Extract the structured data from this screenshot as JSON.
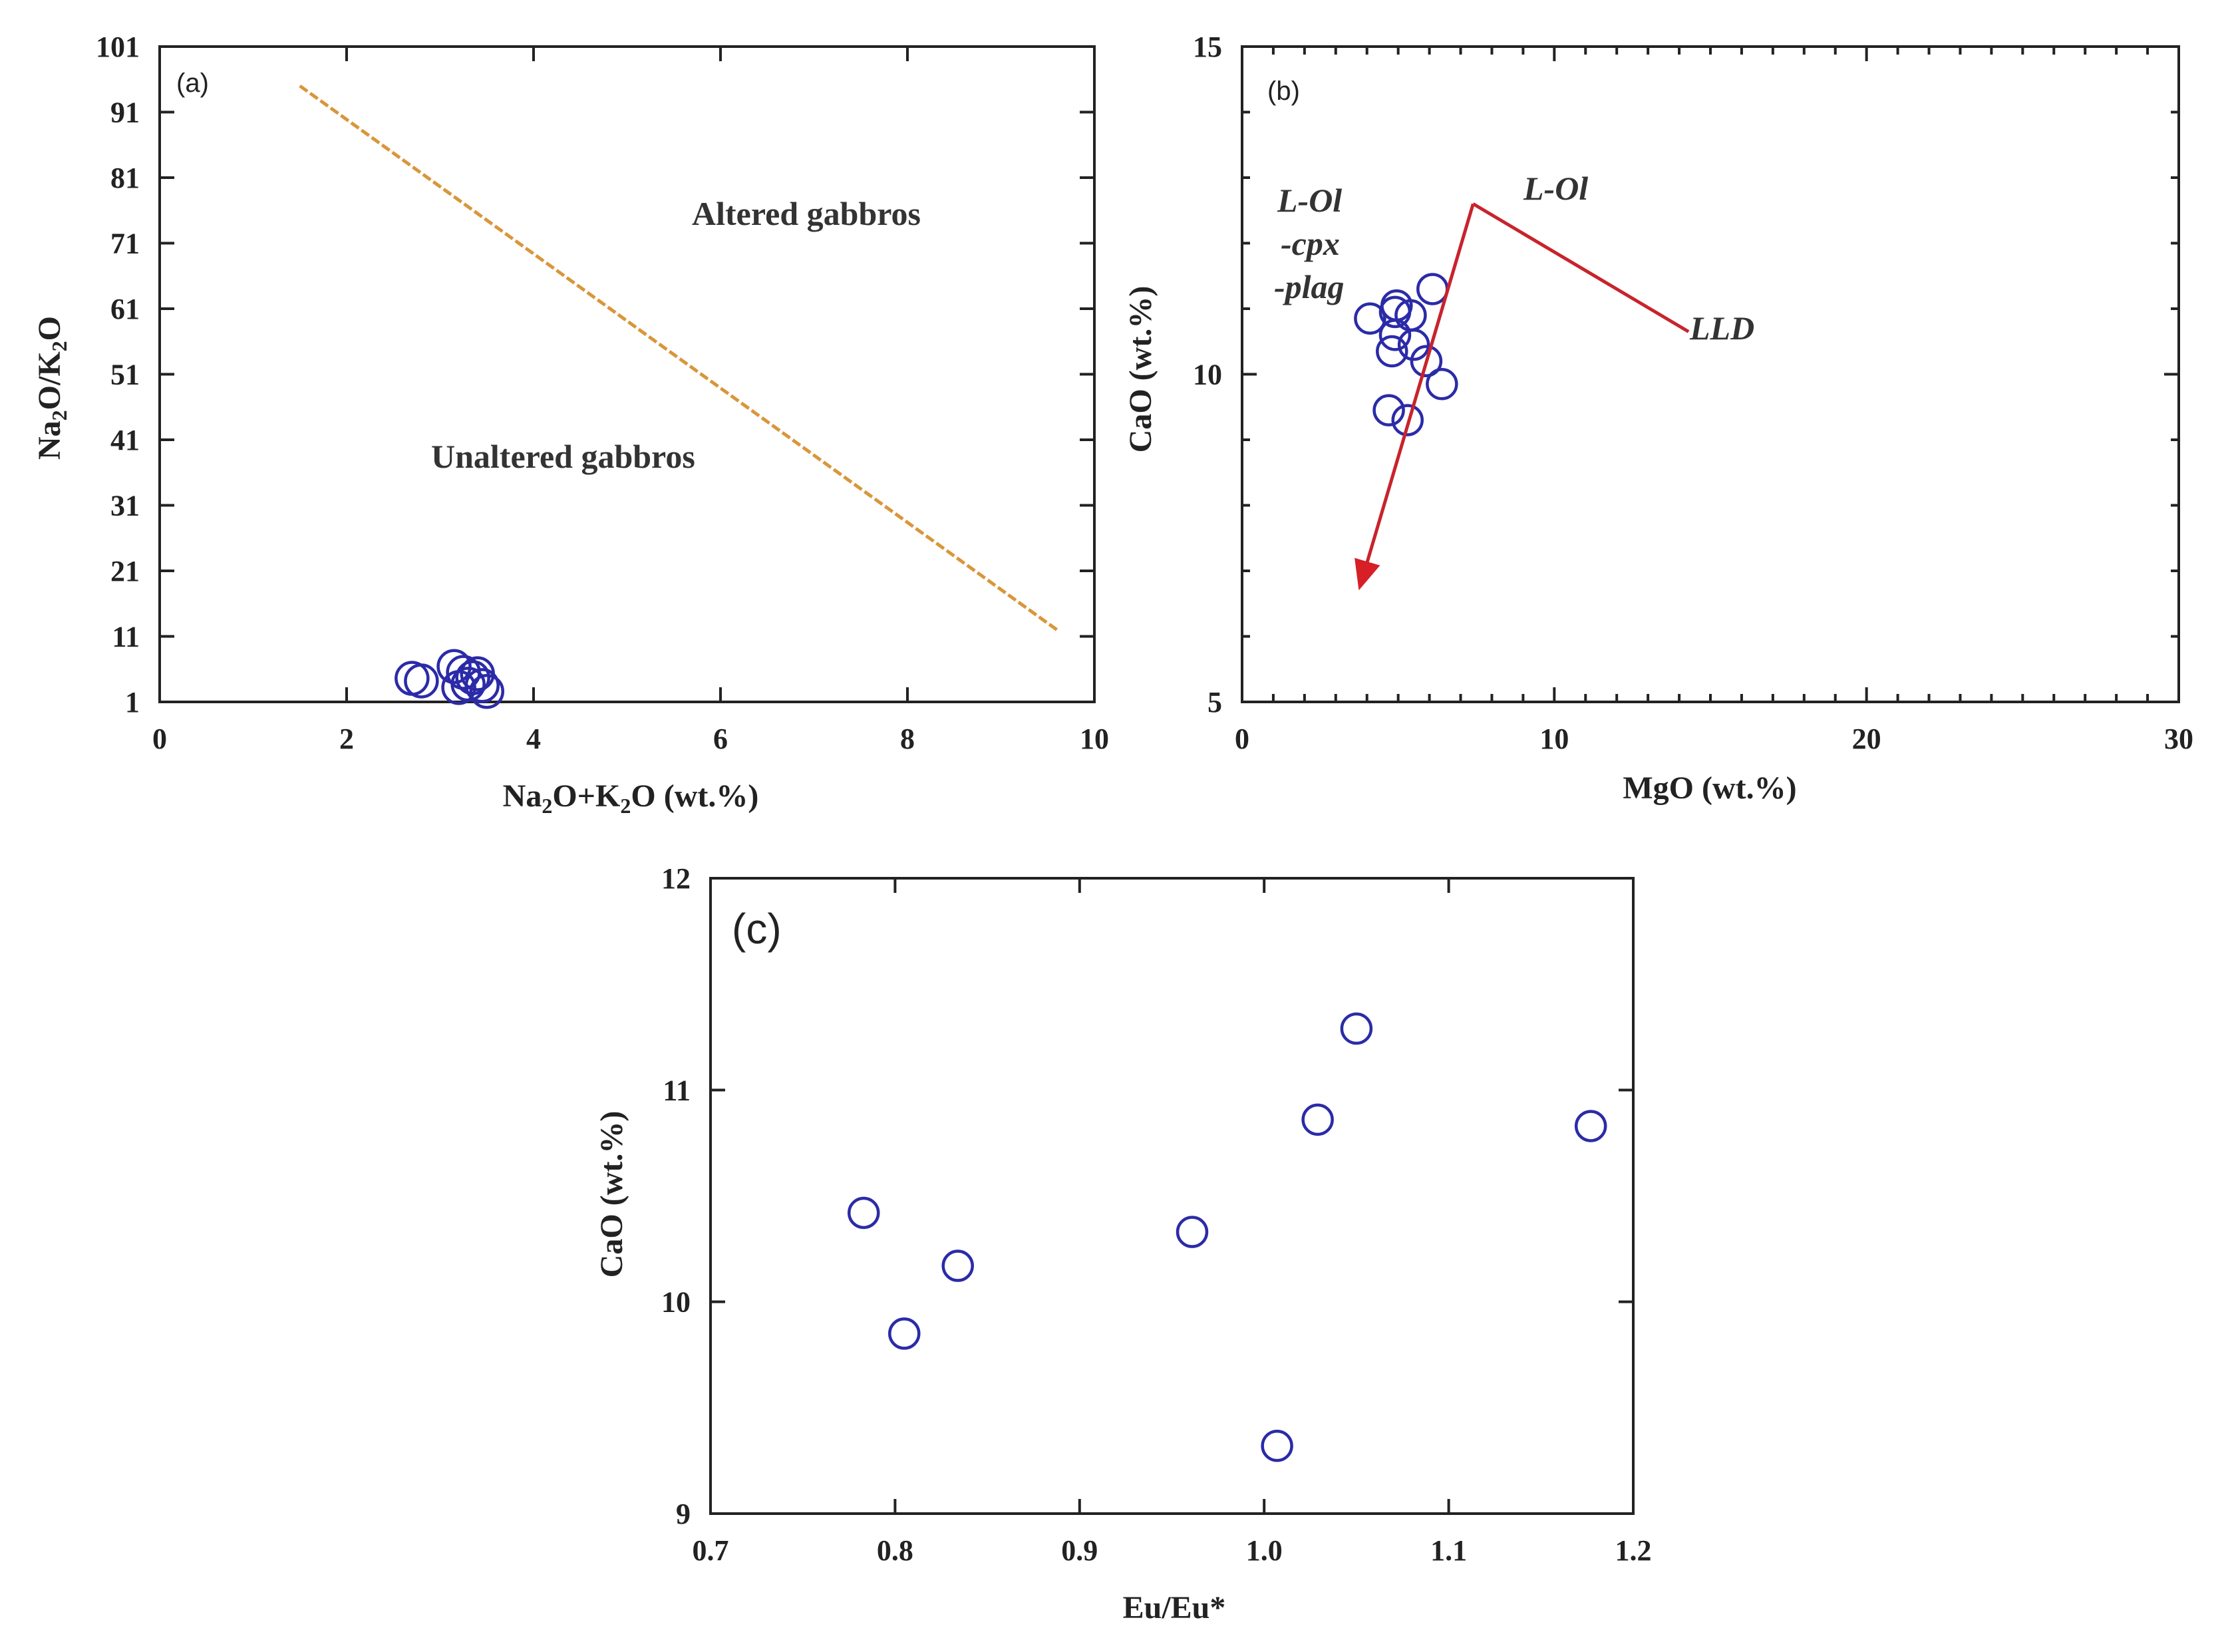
{
  "chart_data": [
    {
      "panel": "(a)",
      "type": "scatter",
      "xlabel": "Na2O+K2O (wt.%)",
      "ylabel": "Na2O/K2O",
      "xlim": [
        0,
        10
      ],
      "ylim": [
        1,
        101
      ],
      "xticks": [
        0,
        2,
        4,
        6,
        8,
        10
      ],
      "yticks": [
        1,
        11,
        21,
        31,
        41,
        51,
        61,
        71,
        81,
        91,
        101
      ],
      "points": [
        {
          "x": 2.7,
          "y": 4.6
        },
        {
          "x": 2.8,
          "y": 4.2
        },
        {
          "x": 3.15,
          "y": 6.4
        },
        {
          "x": 3.25,
          "y": 5.5
        },
        {
          "x": 3.35,
          "y": 4.7
        },
        {
          "x": 3.4,
          "y": 5.3
        },
        {
          "x": 3.3,
          "y": 3.7
        },
        {
          "x": 3.2,
          "y": 3.2
        },
        {
          "x": 3.45,
          "y": 3.5
        },
        {
          "x": 3.5,
          "y": 2.6
        }
      ],
      "divider": {
        "label": "dashed boundary",
        "x": [
          1.5,
          9.6
        ],
        "y": [
          95,
          12
        ],
        "color": "#d9963a"
      },
      "annotations": [
        "Altered gabbros",
        "Unaltered gabbros"
      ]
    },
    {
      "panel": "(b)",
      "type": "scatter",
      "xlabel": "MgO (wt.%)",
      "ylabel": "CaO (wt.%)",
      "xlim": [
        0,
        30
      ],
      "ylim": [
        5,
        15
      ],
      "xticks": [
        0,
        10,
        20,
        30
      ],
      "yticks": [
        5,
        10,
        15
      ],
      "points": [
        {
          "x": 4.1,
          "y": 10.85
        },
        {
          "x": 4.9,
          "y": 10.95
        },
        {
          "x": 4.95,
          "y": 11.05
        },
        {
          "x": 5.4,
          "y": 10.9
        },
        {
          "x": 6.1,
          "y": 11.3
        },
        {
          "x": 4.9,
          "y": 10.6
        },
        {
          "x": 4.8,
          "y": 10.35
        },
        {
          "x": 5.5,
          "y": 10.45
        },
        {
          "x": 5.9,
          "y": 10.2
        },
        {
          "x": 6.4,
          "y": 9.85
        },
        {
          "x": 4.7,
          "y": 9.45
        },
        {
          "x": 5.3,
          "y": 9.3
        }
      ],
      "vectors": [
        {
          "label": "LLD",
          "x": [
            7.4,
            14.3
          ],
          "y": [
            12.6,
            10.65
          ],
          "arrow": false
        },
        {
          "label": "L-Ol-cpx-plag",
          "x": [
            7.4,
            3.8
          ],
          "y": [
            12.6,
            6.8
          ],
          "arrow": true
        }
      ],
      "vector_color": "#c8232c",
      "annotations": [
        "L-Ol",
        "L-Ol",
        "-cpx",
        "-plag",
        "LLD"
      ]
    },
    {
      "panel": "(c)",
      "type": "scatter",
      "xlabel": "Eu/Eu*",
      "ylabel": "CaO (wt.%)",
      "xlim": [
        0.7,
        1.2
      ],
      "ylim": [
        9,
        12
      ],
      "xticks": [
        "0.7",
        "0.8",
        "0.9",
        "1.0",
        "1.1",
        "1.2"
      ],
      "yticks": [
        9,
        10,
        11,
        12
      ],
      "points": [
        {
          "x": 0.783,
          "y": 10.42
        },
        {
          "x": 0.805,
          "y": 9.85
        },
        {
          "x": 0.834,
          "y": 10.17
        },
        {
          "x": 0.961,
          "y": 10.33
        },
        {
          "x": 1.007,
          "y": 9.32
        },
        {
          "x": 1.029,
          "y": 10.86
        },
        {
          "x": 1.05,
          "y": 11.29
        },
        {
          "x": 1.177,
          "y": 10.83
        }
      ]
    }
  ],
  "marker_color": "#2b2ba8"
}
